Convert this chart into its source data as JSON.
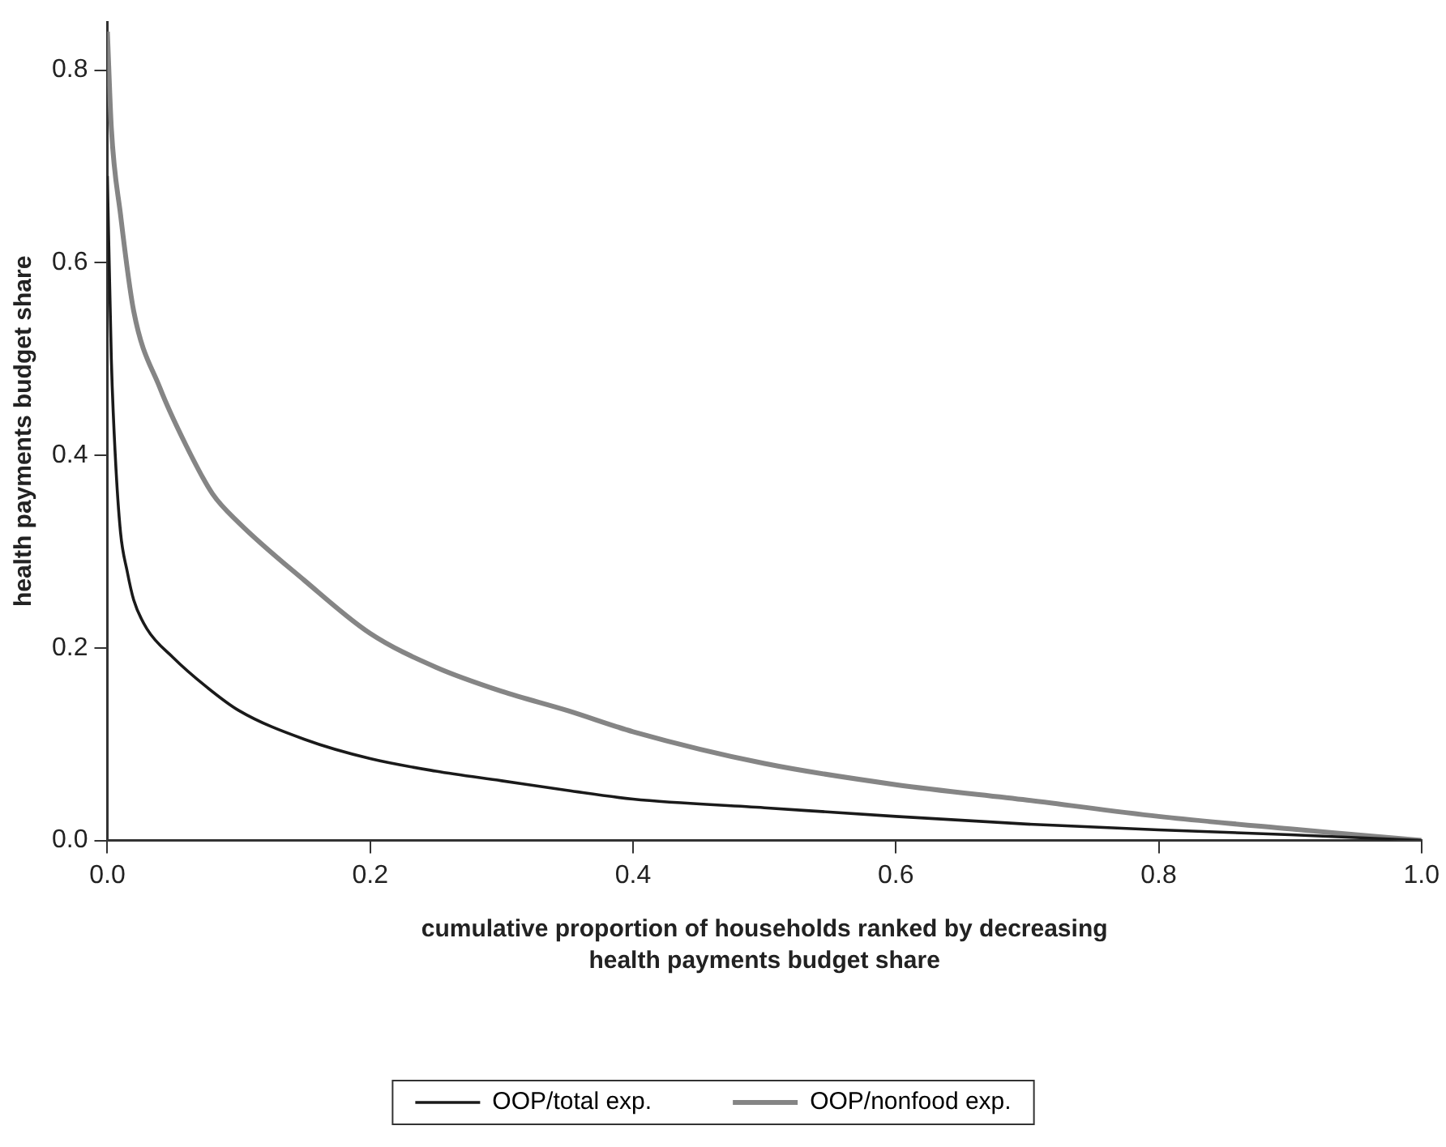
{
  "chart_data": {
    "type": "line",
    "xlabel": "cumulative proportion of households ranked by decreasing health payments budget share",
    "ylabel": "health payments budget share",
    "xlim": [
      0,
      1
    ],
    "xticks": [
      {
        "value": 0,
        "label": "0.0"
      },
      {
        "value": 0.2,
        "label": "0.2"
      },
      {
        "value": 0.4,
        "label": "0.4"
      },
      {
        "value": 0.6,
        "label": "0.6"
      },
      {
        "value": 0.8,
        "label": "0.8"
      },
      {
        "value": 1,
        "label": "1.0"
      }
    ],
    "ylim": [
      0,
      0.85
    ],
    "yticks": [
      {
        "value": 0,
        "label": "0.0"
      },
      {
        "value": 0.2,
        "label": "0.2"
      },
      {
        "value": 0.4,
        "label": "0.4"
      },
      {
        "value": 0.6,
        "label": "0.6"
      },
      {
        "value": 0.8,
        "label": "0.8"
      }
    ],
    "grid": false,
    "legend": "bottom",
    "marker": "none",
    "line_style": "solid",
    "series": [
      {
        "name": "OOP/total exp.",
        "color": "#1a1a1a",
        "x": [
          0,
          0.003,
          0.006,
          0.01,
          0.015,
          0.02,
          0.03,
          0.05,
          0.075,
          0.1,
          0.15,
          0.2,
          0.25,
          0.3,
          0.35,
          0.4,
          0.5,
          0.6,
          0.7,
          0.8,
          0.9,
          0.95,
          1
        ],
        "values": [
          0.69,
          0.5,
          0.4,
          0.32,
          0.28,
          0.25,
          0.22,
          0.19,
          0.16,
          0.135,
          0.105,
          0.085,
          0.072,
          0.062,
          0.052,
          0.043,
          0.034,
          0.025,
          0.017,
          0.011,
          0.006,
          0.003,
          0
        ]
      },
      {
        "name": "OOP/nonfood exp.",
        "color": "#858585",
        "x": [
          0,
          0.003,
          0.01,
          0.02,
          0.04,
          0.06,
          0.08,
          0.1,
          0.15,
          0.2,
          0.25,
          0.3,
          0.35,
          0.4,
          0.5,
          0.6,
          0.7,
          0.8,
          0.9,
          0.95,
          1
        ],
        "values": [
          0.84,
          0.74,
          0.65,
          0.55,
          0.47,
          0.41,
          0.36,
          0.33,
          0.27,
          0.215,
          0.18,
          0.155,
          0.135,
          0.113,
          0.08,
          0.058,
          0.042,
          0.025,
          0.012,
          0.006,
          0
        ]
      }
    ]
  }
}
